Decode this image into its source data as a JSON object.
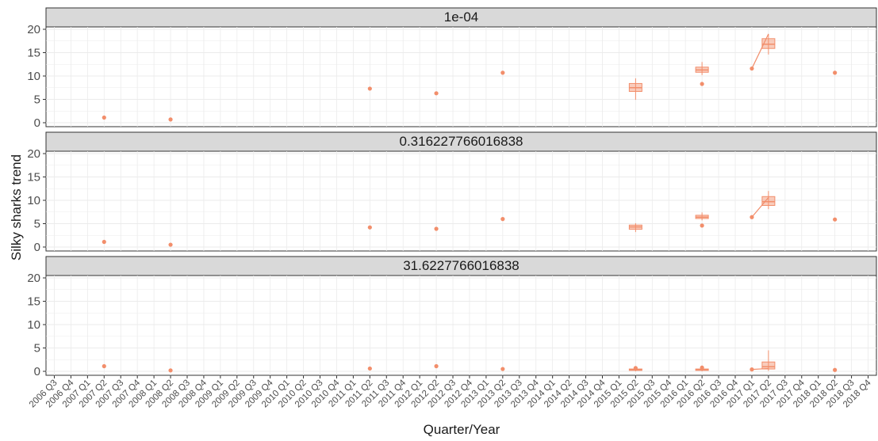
{
  "chart_data": {
    "type": "box",
    "xlabel": "Quarter/Year",
    "ylabel": "Silky sharks trend",
    "ylim": [
      0,
      20
    ],
    "y_ticks": [
      0,
      5,
      10,
      15,
      20
    ],
    "grid": true,
    "colors": {
      "mark": "#f28e6b",
      "strip_fill": "#d9d9d9",
      "grid": "#ebebeb"
    },
    "categories": [
      "2006 Q3",
      "2006 Q4",
      "2007 Q1",
      "2007 Q2",
      "2007 Q3",
      "2007 Q4",
      "2008 Q1",
      "2008 Q2",
      "2008 Q3",
      "2008 Q4",
      "2009 Q1",
      "2009 Q2",
      "2009 Q3",
      "2009 Q4",
      "2010 Q1",
      "2010 Q2",
      "2010 Q3",
      "2010 Q4",
      "2011 Q1",
      "2011 Q2",
      "2011 Q3",
      "2011 Q4",
      "2012 Q1",
      "2012 Q2",
      "2012 Q3",
      "2012 Q4",
      "2013 Q1",
      "2013 Q2",
      "2013 Q3",
      "2013 Q4",
      "2014 Q1",
      "2014 Q2",
      "2014 Q3",
      "2014 Q4",
      "2015 Q1",
      "2015 Q2",
      "2015 Q3",
      "2015 Q4",
      "2016 Q1",
      "2016 Q2",
      "2016 Q3",
      "2016 Q4",
      "2017 Q1",
      "2017 Q2",
      "2017 Q3",
      "2017 Q4",
      "2018 Q1",
      "2018 Q2",
      "2018 Q3",
      "2018 Q4"
    ],
    "panels": [
      {
        "title": "1e-04",
        "points": [
          {
            "x": "2007 Q2",
            "y": 1.1
          },
          {
            "x": "2008 Q2",
            "y": 0.7
          },
          {
            "x": "2011 Q2",
            "y": 7.3
          },
          {
            "x": "2012 Q2",
            "y": 6.3
          },
          {
            "x": "2013 Q2",
            "y": 10.7
          },
          {
            "x": "2016 Q2",
            "y": 8.3
          },
          {
            "x": "2017 Q1",
            "y": 11.6
          },
          {
            "x": "2018 Q2",
            "y": 10.7
          }
        ],
        "boxes": [
          {
            "x": "2015 Q2",
            "min": 4.9,
            "q1": 6.7,
            "median": 7.5,
            "q3": 8.4,
            "max": 9.5
          },
          {
            "x": "2016 Q2",
            "min": 10.2,
            "q1": 10.8,
            "median": 11.3,
            "q3": 11.9,
            "max": 13.0
          },
          {
            "x": "2017 Q2",
            "min": 14.6,
            "q1": 15.9,
            "median": 16.8,
            "q3": 18.0,
            "max": 19.0
          }
        ],
        "line": [
          {
            "x": "2017 Q1",
            "y": 11.6
          },
          {
            "x": "2017 Q2",
            "y": 19.0
          }
        ]
      },
      {
        "title": "0.316227766016838",
        "points": [
          {
            "x": "2007 Q2",
            "y": 1.1
          },
          {
            "x": "2008 Q2",
            "y": 0.5
          },
          {
            "x": "2011 Q2",
            "y": 4.2
          },
          {
            "x": "2012 Q2",
            "y": 3.9
          },
          {
            "x": "2013 Q2",
            "y": 6.0
          },
          {
            "x": "2016 Q2",
            "y": 4.6
          },
          {
            "x": "2017 Q1",
            "y": 6.4
          },
          {
            "x": "2018 Q2",
            "y": 5.9
          }
        ],
        "boxes": [
          {
            "x": "2015 Q2",
            "min": 3.2,
            "q1": 3.8,
            "median": 4.3,
            "q3": 4.7,
            "max": 5.1
          },
          {
            "x": "2016 Q2",
            "min": 5.7,
            "q1": 6.1,
            "median": 6.4,
            "q3": 6.8,
            "max": 7.4
          },
          {
            "x": "2017 Q2",
            "min": 8.1,
            "q1": 8.9,
            "median": 9.7,
            "q3": 10.8,
            "max": 12.0
          }
        ],
        "line": [
          {
            "x": "2017 Q1",
            "y": 6.4
          },
          {
            "x": "2017 Q2",
            "y": 10.6
          }
        ]
      },
      {
        "title": "31.6227766016838",
        "points": [
          {
            "x": "2007 Q2",
            "y": 1.1
          },
          {
            "x": "2008 Q2",
            "y": 0.2
          },
          {
            "x": "2011 Q2",
            "y": 0.6
          },
          {
            "x": "2012 Q2",
            "y": 1.1
          },
          {
            "x": "2013 Q2",
            "y": 0.5
          },
          {
            "x": "2015 Q2",
            "y": 0.7
          },
          {
            "x": "2016 Q2",
            "y": 0.8
          },
          {
            "x": "2017 Q1",
            "y": 0.4
          },
          {
            "x": "2018 Q2",
            "y": 0.3
          }
        ],
        "boxes": [
          {
            "x": "2015 Q2",
            "min": 0.0,
            "q1": 0.2,
            "median": 0.3,
            "q3": 0.5,
            "max": 0.8
          },
          {
            "x": "2016 Q2",
            "min": 0.0,
            "q1": 0.2,
            "median": 0.3,
            "q3": 0.5,
            "max": 0.9
          },
          {
            "x": "2017 Q2",
            "min": 0.1,
            "q1": 0.5,
            "median": 1.0,
            "q3": 2.0,
            "max": 4.5
          }
        ],
        "line": [
          {
            "x": "2017 Q1",
            "y": 0.4
          },
          {
            "x": "2017 Q2",
            "y": 0.6
          }
        ]
      }
    ]
  }
}
